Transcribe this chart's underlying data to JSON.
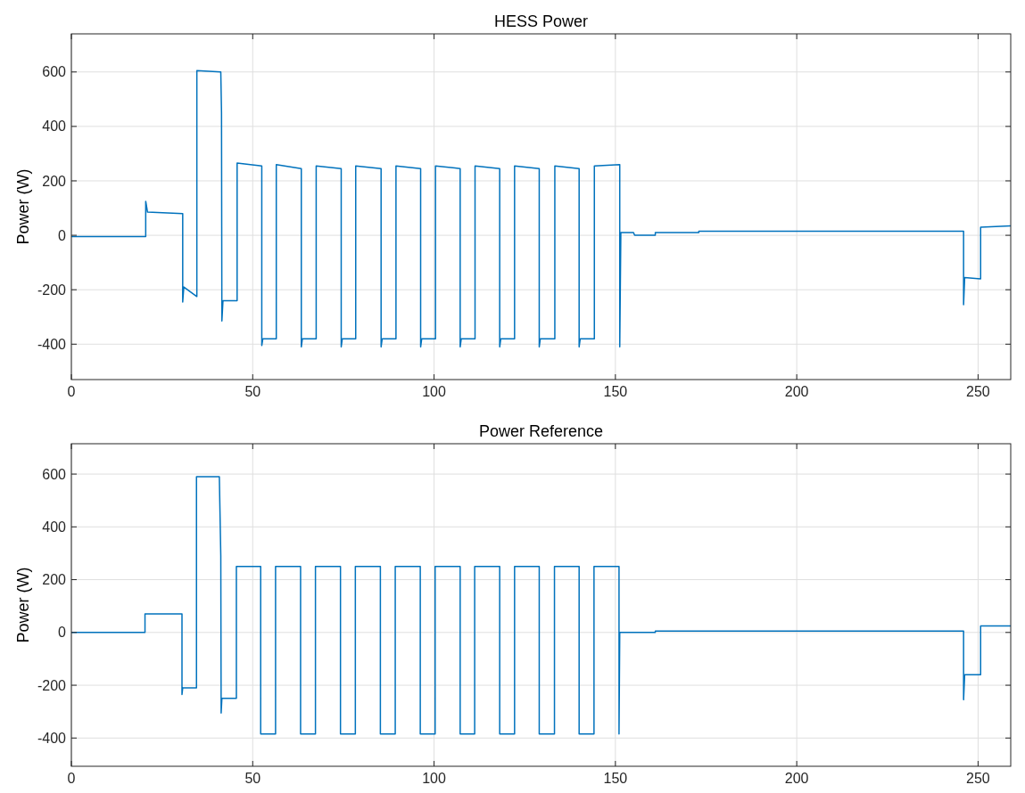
{
  "chart_data": [
    {
      "type": "line",
      "title": "HESS Power",
      "ylabel": "Power (W)",
      "xlim": [
        0,
        259
      ],
      "xticks": [
        0,
        50,
        100,
        150,
        200,
        250
      ],
      "ylim": [
        -530,
        740
      ],
      "yticks": [
        -400,
        -200,
        0,
        200,
        400,
        600
      ],
      "grid": true,
      "series": [
        {
          "color": "#0072bd",
          "x": [
            0,
            20.5,
            20.5,
            21,
            30.7,
            30.7,
            31,
            34.6,
            34.6,
            41.2,
            41.4,
            41.5,
            41.8,
            45.7,
            45.7,
            52.5,
            52.5,
            52.8,
            56.5,
            56.5,
            63.4,
            63.4,
            63.7,
            67.5,
            67.5,
            74.4,
            74.4,
            74.7,
            78.4,
            78.4,
            85.4,
            85.4,
            85.7,
            89.5,
            89.5,
            96.3,
            96.3,
            96.6,
            100.4,
            100.4,
            107.2,
            107.2,
            107.5,
            111.3,
            111.3,
            118.1,
            118.1,
            118.4,
            122.2,
            122.2,
            129,
            129,
            129.3,
            133.3,
            133.3,
            140,
            140,
            140.3,
            144.2,
            144.2,
            151.2,
            151.2,
            151.5,
            155,
            155.3,
            161,
            161,
            173,
            173,
            246,
            246,
            246.3,
            250.7,
            250.7,
            259
          ],
          "values": [
            -5,
            -5,
            125,
            85,
            80,
            -245,
            -190,
            -225,
            605,
            600,
            450,
            -315,
            -240,
            -240,
            265,
            255,
            -405,
            -380,
            -380,
            260,
            245,
            -410,
            -380,
            -380,
            255,
            245,
            -410,
            -380,
            -380,
            255,
            245,
            -410,
            -380,
            -380,
            255,
            245,
            -410,
            -380,
            -380,
            255,
            245,
            -410,
            -380,
            -380,
            255,
            245,
            -410,
            -380,
            -380,
            255,
            245,
            -410,
            -380,
            -380,
            255,
            245,
            -410,
            -380,
            -380,
            255,
            260,
            -410,
            10,
            10,
            0,
            0,
            10,
            10,
            15,
            15,
            -255,
            -155,
            -160,
            30,
            35
          ]
        }
      ]
    },
    {
      "type": "line",
      "title": "Power Reference",
      "ylabel": "Power (W)",
      "xlim": [
        0,
        259
      ],
      "xticks": [
        0,
        50,
        100,
        150,
        200,
        250
      ],
      "ylim": [
        -507,
        715
      ],
      "yticks": [
        -400,
        -200,
        0,
        200,
        400,
        600
      ],
      "grid": true,
      "series": [
        {
          "color": "#0072bd",
          "x": [
            0,
            20.3,
            20.3,
            30.5,
            30.5,
            30.7,
            34.5,
            34.5,
            40.8,
            41.2,
            41.3,
            41.5,
            45.5,
            45.5,
            52.2,
            52.2,
            56.3,
            56.3,
            63.2,
            63.2,
            67.3,
            67.3,
            74.2,
            74.2,
            78.3,
            78.3,
            85.2,
            85.2,
            89.3,
            89.3,
            96.2,
            96.2,
            100.3,
            100.3,
            107.2,
            107.2,
            111.2,
            111.2,
            118.1,
            118.1,
            122.2,
            122.2,
            129,
            129,
            133.2,
            133.2,
            140,
            140,
            144.1,
            144.1,
            151,
            151,
            151.2,
            161,
            161,
            246,
            246,
            246.3,
            250.7,
            250.7,
            259
          ],
          "values": [
            0,
            0,
            70,
            70,
            -235,
            -210,
            -210,
            590,
            590,
            290,
            -305,
            -250,
            -250,
            250,
            250,
            -385,
            -385,
            250,
            250,
            -385,
            -385,
            250,
            250,
            -385,
            -385,
            250,
            250,
            -385,
            -385,
            250,
            250,
            -385,
            -385,
            250,
            250,
            -385,
            -385,
            250,
            250,
            -385,
            -385,
            250,
            250,
            -385,
            -385,
            250,
            250,
            -385,
            -385,
            250,
            250,
            -385,
            0,
            0,
            5,
            5,
            -255,
            -160,
            -160,
            25,
            25
          ]
        }
      ]
    }
  ]
}
